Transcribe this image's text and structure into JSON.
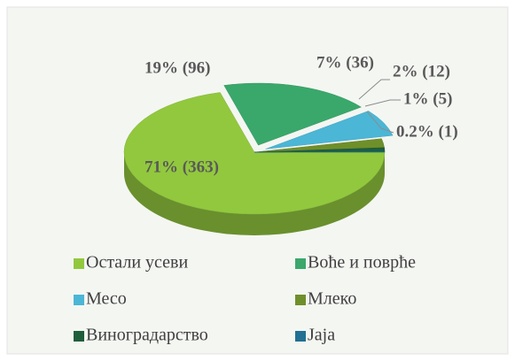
{
  "chart_data": {
    "type": "pie3d",
    "categories": [
      "Остали усеви",
      "Воће и поврће",
      "Месо",
      "Млеко",
      "Виноградарство",
      "Јаја"
    ],
    "values": [
      363,
      96,
      36,
      12,
      5,
      1
    ],
    "value_labels": [
      "71% (363)",
      "19% (96)",
      "7% (36)",
      "2% (12)",
      "1% (5)",
      "0.2% (1)"
    ],
    "colors": [
      "#92c83e",
      "#3aa86b",
      "#4bb6d6",
      "#6f8f2a",
      "#1f5e3a",
      "#216f92"
    ],
    "legend": "bottom"
  }
}
